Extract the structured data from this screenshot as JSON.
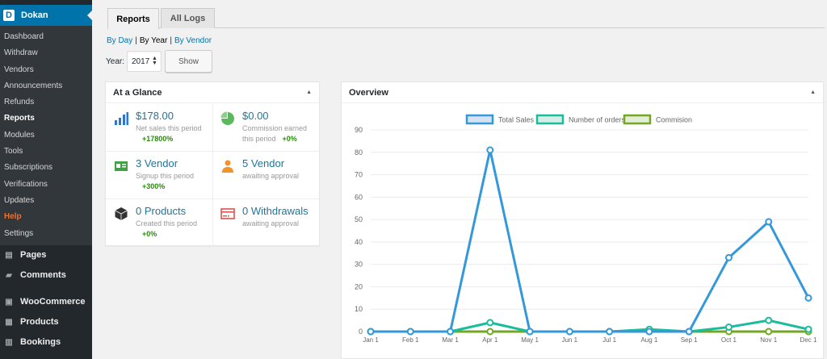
{
  "sidebar": {
    "dokan_label": "Dokan",
    "dokan_logo": "D",
    "submenu": [
      "Dashboard",
      "Withdraw",
      "Vendors",
      "Announcements",
      "Refunds",
      "Reports",
      "Modules",
      "Tools",
      "Subscriptions",
      "Verifications",
      "Updates",
      "Help",
      "Settings"
    ],
    "current": "Reports",
    "menu": [
      {
        "label": "Pages",
        "icon": "pages-icon"
      },
      {
        "label": "Comments",
        "icon": "comments-icon"
      },
      {
        "label": "WooCommerce",
        "icon": "woocommerce-icon"
      },
      {
        "label": "Products",
        "icon": "products-icon"
      },
      {
        "label": "Bookings",
        "icon": "bookings-icon"
      }
    ]
  },
  "tabs": {
    "reports": "Reports",
    "all_logs": "All Logs"
  },
  "subnav": {
    "by_day": "By Day",
    "sep1": "|",
    "by_year": "By Year",
    "sep2": "|",
    "by_vendor": "By Vendor"
  },
  "filter": {
    "year_label": "Year:",
    "year_value": "2017",
    "show_button": "Show"
  },
  "glance": {
    "title": "At a Glance",
    "cells": [
      {
        "value": "$178.00",
        "desc": "Net sales this period",
        "change": "+17800%",
        "icon": "bar-chart-icon",
        "color": "#2e77d0"
      },
      {
        "value": "$0.00",
        "desc": "Commission earned this period",
        "change": "+0%",
        "icon": "pie-chart-icon",
        "color": "#5cb85c"
      },
      {
        "value": "3 Vendor",
        "desc": "Signup this period",
        "change": "+300%",
        "icon": "id-card-icon",
        "color": "#43a047"
      },
      {
        "value": "5 Vendor",
        "desc": "awaiting approval",
        "change": "",
        "icon": "user-icon",
        "color": "#f0932b"
      },
      {
        "value": "0 Products",
        "desc": "Created this period",
        "change": "+0%",
        "icon": "box-icon",
        "color": "#333333"
      },
      {
        "value": "0 Withdrawals",
        "desc": "awaiting approval",
        "change": "",
        "icon": "card-icon",
        "color": "#d9534f"
      }
    ]
  },
  "overview": {
    "title": "Overview"
  },
  "chart_data": {
    "type": "line",
    "categories": [
      "Jan 1",
      "Feb 1",
      "Mar 1",
      "Apr 1",
      "May 1",
      "Jun 1",
      "Jul 1",
      "Aug 1",
      "Sep 1",
      "Oct 1",
      "Nov 1",
      "Dec 1"
    ],
    "ylim": [
      0,
      90
    ],
    "yticks": [
      0,
      10,
      20,
      30,
      40,
      50,
      60,
      70,
      80,
      90
    ],
    "legend_position": "top",
    "grid": true,
    "series": [
      {
        "name": "Total Sales",
        "color": "#3498db",
        "fill": "#d6e3f0",
        "values": [
          0,
          0,
          0,
          81,
          0,
          0,
          0,
          0,
          0,
          33,
          49,
          15
        ]
      },
      {
        "name": "Number of orders",
        "color": "#1abc9c",
        "fill": "#d5eee8",
        "values": [
          0,
          0,
          0,
          4,
          0,
          0,
          0,
          1,
          0,
          2,
          5,
          1
        ]
      },
      {
        "name": "Commision",
        "color": "#73a724",
        "fill": "#e4edd5",
        "values": [
          0,
          0,
          0,
          0,
          0,
          0,
          0,
          0,
          0,
          0,
          0,
          0
        ]
      }
    ]
  }
}
